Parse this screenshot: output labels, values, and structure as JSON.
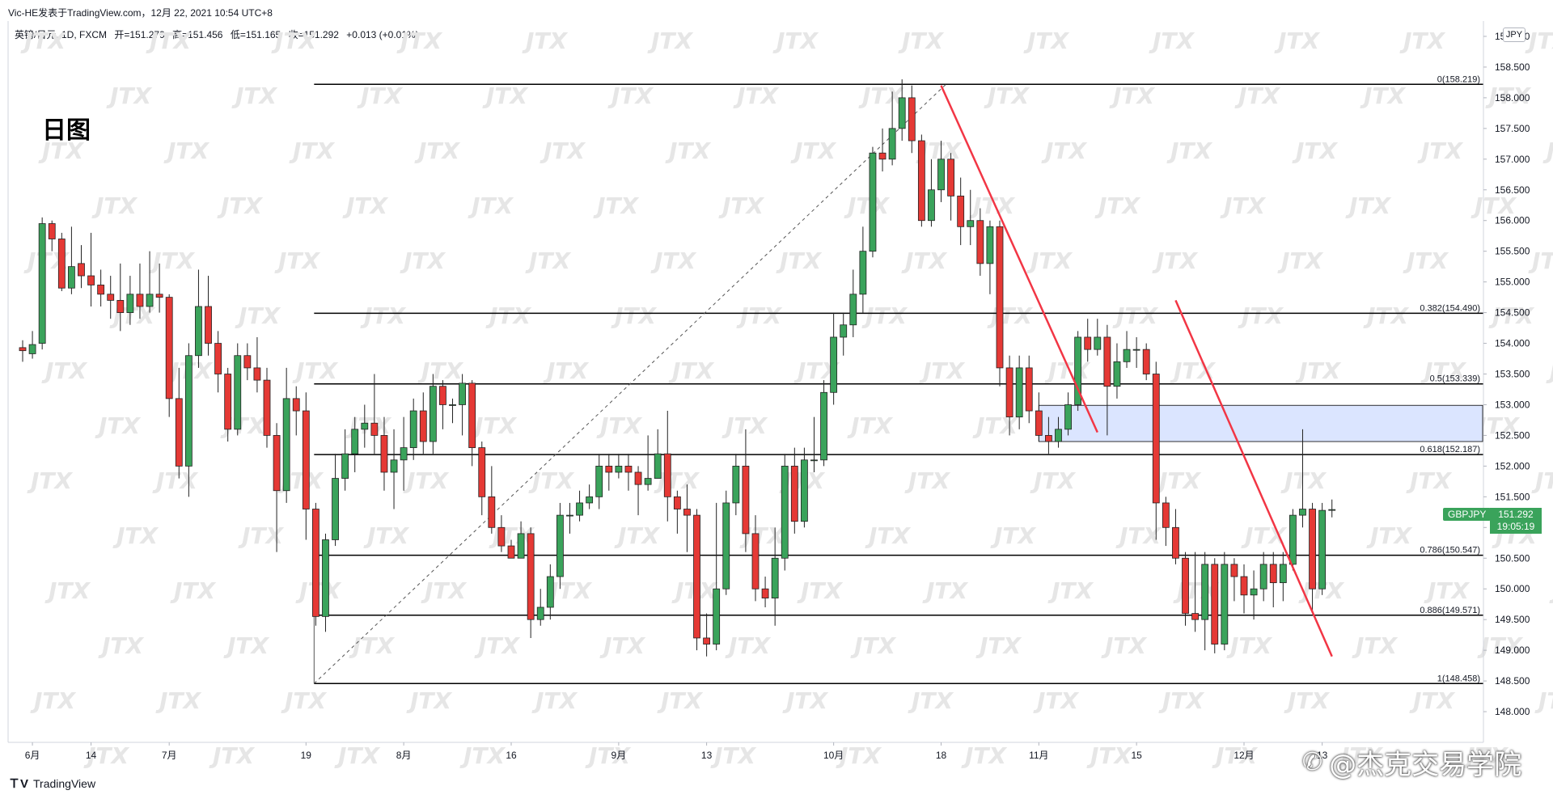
{
  "header": {
    "publisher": "Vic-HE发表于TradingView.com，12月 22, 2021 10:54 UTC+8"
  },
  "symbol_info": {
    "name": "英镑/日元, 1D, FXCM",
    "open": "开=151.279",
    "high": "高=151.456",
    "low": "低=151.165",
    "close": "收=151.292",
    "change": "+0.013 (+0.01%)"
  },
  "overlay": {
    "title": "日图"
  },
  "currency_label": "JPY",
  "current": {
    "symbol": "GBPJPY",
    "price": "151.292",
    "countdown": "19:05:19"
  },
  "footer": {
    "brand": "TradingView"
  },
  "watermark": {
    "text": "@杰克交易学院",
    "repeat_text": "JTX"
  },
  "colors": {
    "up": "#3aa35b",
    "down": "#e53935",
    "trendline": "#f23645",
    "zone": "#dbe5ff",
    "fib_line": "#000000"
  },
  "chart_data": {
    "type": "candlestick",
    "symbol": "GBPJPY",
    "timeframe": "1D",
    "ylim": [
      147.5,
      159.25
    ],
    "y_ticks": [
      "148.000",
      "148.500",
      "149.000",
      "149.500",
      "150.000",
      "150.500",
      "151.000",
      "151.500",
      "152.000",
      "152.500",
      "153.000",
      "153.500",
      "154.000",
      "154.500",
      "155.000",
      "155.500",
      "156.000",
      "156.500",
      "157.000",
      "157.500",
      "158.000",
      "158.500",
      "159.000"
    ],
    "x_labels": [
      {
        "label": "6月",
        "index": 1
      },
      {
        "label": "14",
        "index": 7
      },
      {
        "label": "7月",
        "index": 15
      },
      {
        "label": "19",
        "index": 29
      },
      {
        "label": "8月",
        "index": 39
      },
      {
        "label": "16",
        "index": 50
      },
      {
        "label": "9月",
        "index": 61
      },
      {
        "label": "13",
        "index": 70
      },
      {
        "label": "10月",
        "index": 83
      },
      {
        "label": "18",
        "index": 94
      },
      {
        "label": "11月",
        "index": 104
      },
      {
        "label": "15",
        "index": 114
      },
      {
        "label": "12月",
        "index": 125
      },
      {
        "label": "13",
        "index": 133
      }
    ],
    "fib_levels": [
      {
        "label": "0(158.219)",
        "value": 158.219
      },
      {
        "label": "0.382(154.490)",
        "value": 154.49
      },
      {
        "label": "0.5(153.339)",
        "value": 153.339
      },
      {
        "label": "0.618(152.187)",
        "value": 152.187
      },
      {
        "label": "0.786(150.547)",
        "value": 150.547
      },
      {
        "label": "0.886(149.571)",
        "value": 149.571
      },
      {
        "label": "1(148.458)",
        "value": 148.458
      }
    ],
    "fib_start_index": 29,
    "fib_diagonal": {
      "from_index": 29,
      "from_value": 148.458,
      "to_index": 94,
      "to_value": 158.219
    },
    "zone": {
      "start_index": 104,
      "y_top": 152.99,
      "y_bottom": 152.4
    },
    "trendlines": [
      {
        "from_index": 94,
        "from_value": 158.2,
        "to_index": 110,
        "to_value": 152.55
      },
      {
        "from_index": 118,
        "from_value": 154.7,
        "to_index": 134,
        "to_value": 148.9
      }
    ],
    "candles": [
      [
        153.93,
        153.88,
        154.05,
        153.7
      ],
      [
        153.83,
        153.98,
        154.2,
        153.75
      ],
      [
        154.0,
        155.95,
        156.05,
        153.9
      ],
      [
        155.95,
        155.7,
        156.0,
        155.5
      ],
      [
        155.7,
        154.9,
        155.8,
        154.85
      ],
      [
        154.9,
        155.25,
        155.9,
        154.8
      ],
      [
        155.3,
        155.1,
        155.6,
        154.9
      ],
      [
        155.1,
        154.95,
        155.8,
        154.6
      ],
      [
        154.95,
        154.8,
        155.2,
        154.6
      ],
      [
        154.8,
        154.7,
        155.1,
        154.4
      ],
      [
        154.7,
        154.5,
        155.3,
        154.2
      ],
      [
        154.5,
        154.8,
        155.1,
        154.3
      ],
      [
        154.8,
        154.6,
        155.3,
        154.4
      ],
      [
        154.6,
        154.8,
        155.5,
        154.5
      ],
      [
        154.8,
        154.75,
        155.3,
        154.5
      ],
      [
        154.75,
        153.1,
        154.8,
        152.8
      ],
      [
        153.1,
        152.0,
        153.6,
        151.8
      ],
      [
        152.0,
        153.8,
        154.0,
        151.5
      ],
      [
        153.8,
        154.6,
        155.2,
        153.6
      ],
      [
        154.6,
        154.0,
        155.1,
        153.8
      ],
      [
        154.0,
        153.5,
        154.2,
        153.2
      ],
      [
        153.5,
        152.6,
        153.6,
        152.4
      ],
      [
        152.6,
        153.8,
        154.0,
        152.5
      ],
      [
        153.8,
        153.6,
        154.0,
        153.4
      ],
      [
        153.6,
        153.4,
        154.1,
        153.2
      ],
      [
        153.4,
        152.5,
        153.6,
        152.3
      ],
      [
        152.5,
        151.6,
        152.7,
        150.6
      ],
      [
        151.6,
        153.1,
        153.6,
        151.4
      ],
      [
        153.1,
        152.9,
        153.3,
        152.5
      ],
      [
        152.9,
        151.3,
        153.2,
        150.8
      ],
      [
        151.3,
        149.55,
        151.4,
        149.4
      ],
      [
        149.55,
        150.8,
        150.9,
        149.3
      ],
      [
        150.8,
        151.8,
        152.2,
        150.7
      ],
      [
        151.8,
        152.2,
        152.6,
        151.6
      ],
      [
        152.2,
        152.6,
        152.8,
        151.9
      ],
      [
        152.6,
        152.7,
        153.0,
        152.3
      ],
      [
        152.7,
        152.5,
        153.5,
        152.2
      ],
      [
        152.5,
        151.9,
        152.8,
        151.6
      ],
      [
        151.9,
        152.1,
        152.6,
        151.3
      ],
      [
        152.1,
        152.3,
        152.8,
        151.6
      ],
      [
        152.3,
        152.9,
        153.1,
        152.1
      ],
      [
        152.9,
        152.4,
        153.2,
        152.2
      ],
      [
        152.4,
        153.3,
        153.5,
        152.2
      ],
      [
        153.3,
        153.0,
        153.4,
        152.6
      ],
      [
        153.0,
        153.0,
        153.1,
        152.7
      ],
      [
        153.0,
        153.35,
        153.5,
        152.5
      ],
      [
        153.35,
        152.3,
        153.4,
        152.0
      ],
      [
        152.3,
        151.5,
        152.4,
        151.2
      ],
      [
        151.5,
        151.0,
        152.0,
        150.9
      ],
      [
        151.0,
        150.7,
        151.2,
        150.6
      ],
      [
        150.7,
        150.5,
        150.8,
        150.5
      ],
      [
        150.5,
        150.9,
        151.1,
        150.6
      ],
      [
        150.9,
        149.5,
        151.0,
        149.2
      ],
      [
        149.5,
        149.7,
        150.0,
        149.4
      ],
      [
        149.7,
        150.2,
        150.4,
        149.5
      ],
      [
        150.2,
        151.2,
        151.4,
        150.0
      ],
      [
        151.2,
        151.2,
        151.4,
        150.9
      ],
      [
        151.2,
        151.4,
        151.6,
        151.1
      ],
      [
        151.4,
        151.5,
        151.7,
        151.3
      ],
      [
        151.5,
        152.0,
        152.2,
        151.3
      ],
      [
        152.0,
        151.9,
        152.2,
        151.6
      ],
      [
        151.9,
        152.0,
        152.2,
        151.8
      ],
      [
        152.0,
        151.9,
        152.2,
        151.6
      ],
      [
        151.9,
        151.7,
        152.0,
        151.2
      ],
      [
        151.7,
        151.8,
        152.5,
        151.6
      ],
      [
        151.8,
        152.2,
        152.6,
        151.8
      ],
      [
        152.2,
        151.5,
        152.9,
        151.1
      ],
      [
        151.5,
        151.3,
        151.6,
        150.9
      ],
      [
        151.3,
        151.2,
        151.7,
        150.6
      ],
      [
        151.2,
        149.2,
        151.3,
        149.0
      ],
      [
        149.2,
        149.1,
        149.6,
        148.9
      ],
      [
        149.1,
        150.0,
        151.4,
        149.0
      ],
      [
        150.0,
        151.4,
        151.6,
        149.9
      ],
      [
        151.4,
        152.0,
        152.2,
        151.2
      ],
      [
        152.0,
        150.9,
        152.6,
        150.6
      ],
      [
        150.9,
        150.0,
        151.2,
        149.8
      ],
      [
        150.0,
        149.85,
        150.2,
        149.7
      ],
      [
        149.85,
        150.5,
        151.0,
        149.4
      ],
      [
        150.5,
        152.0,
        152.2,
        150.3
      ],
      [
        152.0,
        151.1,
        152.3,
        150.9
      ],
      [
        151.1,
        152.1,
        152.3,
        151.0
      ],
      [
        152.1,
        152.1,
        152.8,
        151.9
      ],
      [
        152.1,
        153.2,
        153.4,
        152.0
      ],
      [
        153.2,
        154.1,
        154.5,
        153.0
      ],
      [
        154.1,
        154.3,
        154.5,
        153.8
      ],
      [
        154.3,
        154.8,
        155.2,
        154.1
      ],
      [
        154.8,
        155.5,
        155.9,
        154.5
      ],
      [
        155.5,
        157.1,
        157.2,
        155.4
      ],
      [
        157.1,
        157.0,
        157.5,
        156.8
      ],
      [
        157.0,
        157.5,
        158.1,
        156.9
      ],
      [
        157.5,
        158.0,
        158.3,
        157.3
      ],
      [
        158.0,
        157.3,
        158.2,
        157.1
      ],
      [
        157.3,
        156.0,
        157.4,
        155.9
      ],
      [
        156.0,
        156.5,
        157.0,
        155.9
      ],
      [
        156.5,
        157.0,
        157.3,
        156.3
      ],
      [
        157.0,
        156.4,
        157.1,
        156.0
      ],
      [
        156.4,
        155.9,
        156.7,
        155.6
      ],
      [
        155.9,
        156.0,
        156.5,
        155.6
      ],
      [
        156.0,
        155.3,
        156.2,
        155.1
      ],
      [
        155.3,
        155.9,
        156.0,
        154.8
      ],
      [
        155.9,
        153.6,
        156.0,
        153.3
      ],
      [
        153.6,
        152.8,
        153.8,
        152.5
      ],
      [
        152.8,
        153.6,
        153.8,
        152.6
      ],
      [
        153.6,
        152.9,
        153.8,
        152.7
      ],
      [
        152.9,
        152.5,
        153.2,
        152.4
      ],
      [
        152.5,
        152.4,
        152.8,
        152.2
      ],
      [
        152.4,
        152.6,
        152.8,
        152.3
      ],
      [
        152.6,
        153.0,
        153.2,
        152.5
      ],
      [
        153.0,
        154.1,
        154.2,
        152.9
      ],
      [
        154.1,
        153.9,
        154.4,
        153.7
      ],
      [
        153.9,
        154.1,
        154.4,
        153.8
      ],
      [
        154.1,
        153.3,
        154.3,
        152.5
      ],
      [
        153.3,
        153.7,
        154.0,
        153.1
      ],
      [
        153.7,
        153.9,
        154.2,
        153.6
      ],
      [
        153.9,
        153.9,
        154.1,
        153.6
      ],
      [
        153.9,
        153.5,
        154.0,
        153.4
      ],
      [
        153.5,
        151.4,
        153.7,
        150.8
      ],
      [
        151.4,
        151.0,
        151.5,
        150.7
      ],
      [
        151.0,
        150.5,
        151.3,
        150.4
      ],
      [
        150.5,
        149.6,
        150.6,
        149.4
      ],
      [
        149.6,
        149.5,
        150.6,
        149.3
      ],
      [
        149.5,
        150.4,
        150.6,
        149.0
      ],
      [
        150.4,
        149.1,
        150.5,
        148.95
      ],
      [
        149.1,
        150.4,
        150.6,
        149.0
      ],
      [
        150.4,
        150.2,
        150.5,
        149.8
      ],
      [
        150.2,
        149.9,
        150.4,
        149.6
      ],
      [
        149.9,
        150.0,
        150.3,
        149.5
      ],
      [
        150.0,
        150.4,
        150.6,
        149.8
      ],
      [
        150.4,
        150.1,
        150.6,
        149.7
      ],
      [
        150.1,
        150.4,
        150.6,
        149.8
      ],
      [
        150.4,
        151.2,
        151.3,
        150.3
      ],
      [
        151.2,
        151.3,
        152.6,
        151.0
      ],
      [
        151.3,
        150.0,
        151.4,
        149.6
      ],
      [
        150.0,
        151.279,
        151.4,
        149.9
      ],
      [
        151.279,
        151.292,
        151.456,
        151.165
      ]
    ]
  }
}
